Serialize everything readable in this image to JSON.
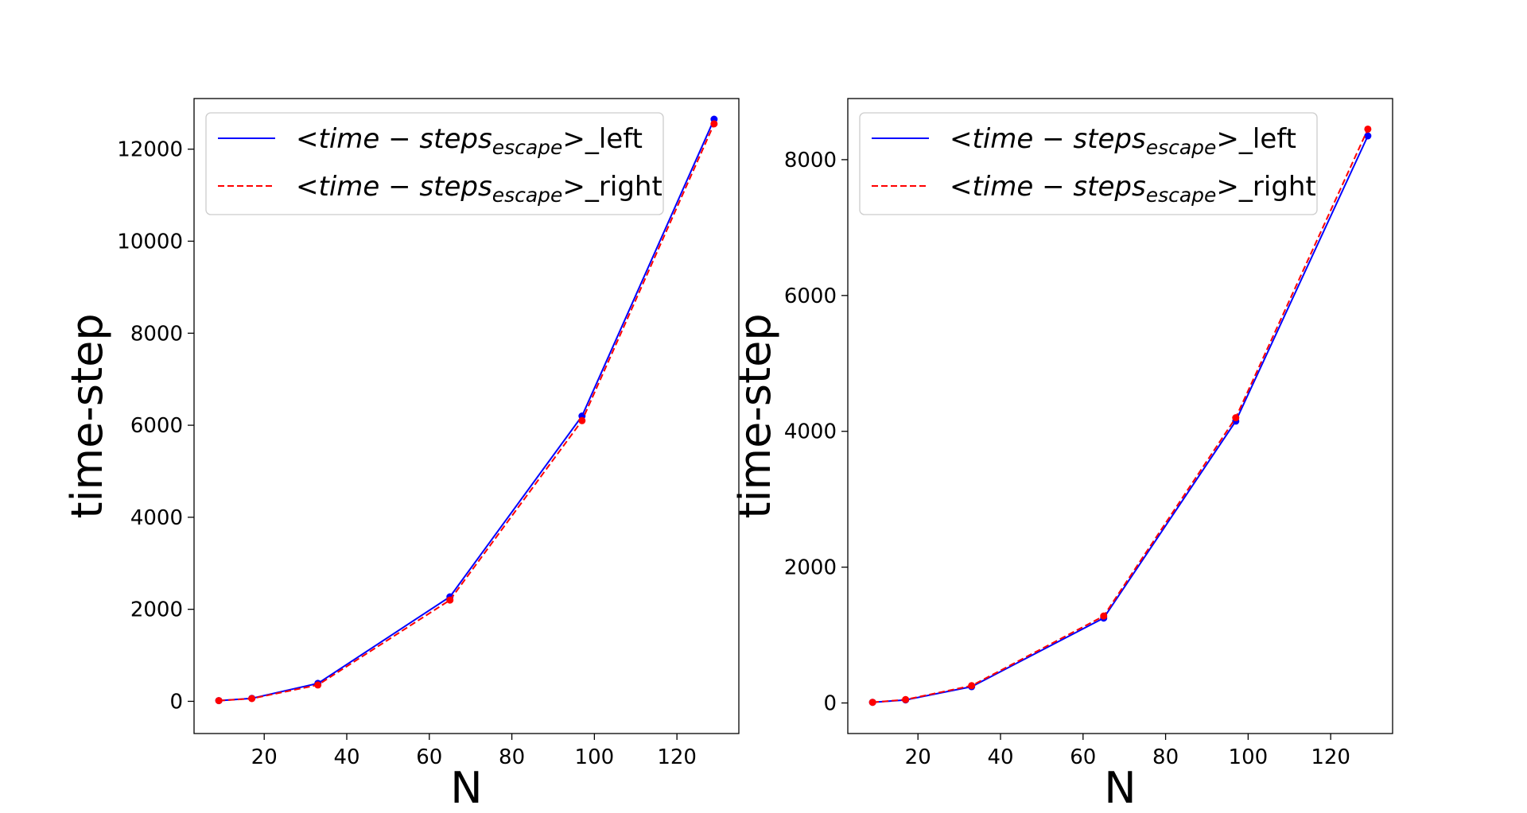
{
  "chart_data": [
    {
      "type": "line",
      "title": "",
      "xlabel": "N",
      "ylabel": "time-step",
      "xlim": [
        3,
        135
      ],
      "ylim": [
        -700,
        13100
      ],
      "xticks": [
        20,
        40,
        60,
        80,
        100,
        120
      ],
      "yticks": [
        0,
        2000,
        4000,
        6000,
        8000,
        10000,
        12000
      ],
      "grid": false,
      "legend_position": "top-left",
      "x": [
        9,
        17,
        33,
        65,
        97,
        129
      ],
      "series": [
        {
          "name": "<time − steps_escape>_left",
          "legend": {
            "prefix": "<",
            "main": "time − steps",
            "sub": "escape",
            "suffix": ">_left"
          },
          "color": "#0000ff",
          "linestyle": "solid",
          "values": [
            15,
            65,
            390,
            2270,
            6200,
            12650
          ]
        },
        {
          "name": "<time − steps_escape>_right",
          "legend": {
            "prefix": "<",
            "main": "time − steps",
            "sub": "escape",
            "suffix": ">_right"
          },
          "color": "#ff0000",
          "linestyle": "dashed",
          "values": [
            15,
            60,
            355,
            2200,
            6100,
            12550
          ]
        }
      ]
    },
    {
      "type": "line",
      "title": "",
      "xlabel": "N",
      "ylabel": "time-step",
      "xlim": [
        3,
        135
      ],
      "ylim": [
        -450,
        8900
      ],
      "xticks": [
        20,
        40,
        60,
        80,
        100,
        120
      ],
      "yticks": [
        0,
        2000,
        4000,
        6000,
        8000
      ],
      "grid": false,
      "legend_position": "top-left",
      "x": [
        9,
        17,
        33,
        65,
        97,
        129
      ],
      "series": [
        {
          "name": "<time − steps_escape>_left",
          "legend": {
            "prefix": "<",
            "main": "time − steps",
            "sub": "escape",
            "suffix": ">_left"
          },
          "color": "#0000ff",
          "linestyle": "solid",
          "values": [
            10,
            45,
            240,
            1250,
            4150,
            8350
          ]
        },
        {
          "name": "<time − steps_escape>_right",
          "legend": {
            "prefix": "<",
            "main": "time − steps",
            "sub": "escape",
            "suffix": ">_right"
          },
          "color": "#ff0000",
          "linestyle": "dashed",
          "values": [
            10,
            50,
            255,
            1280,
            4200,
            8450
          ]
        }
      ]
    }
  ]
}
